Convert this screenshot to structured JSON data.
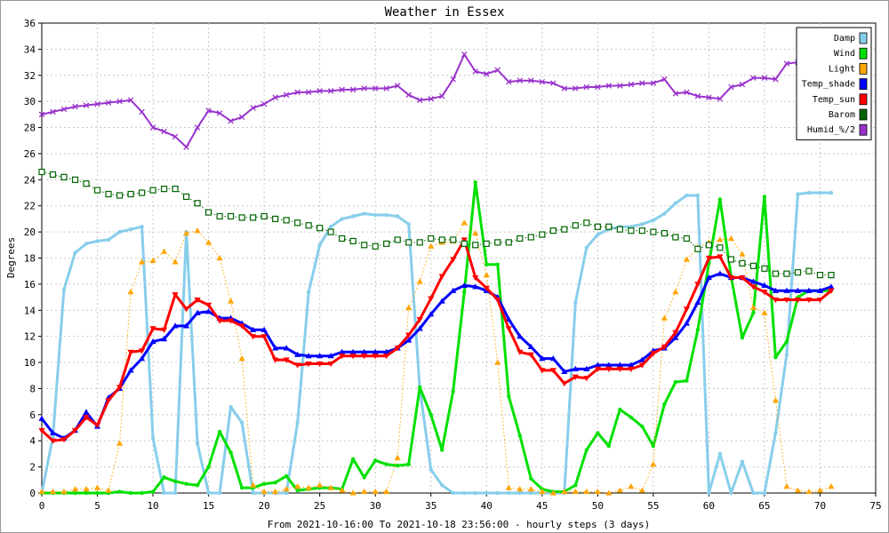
{
  "chart_data": {
    "type": "line",
    "title": "Weather in Essex",
    "xlabel": "From 2021-10-16:00 To 2021-10-18 23:56:00 - hourly steps (3 days)",
    "ylabel": "Degrees",
    "xlim": [
      0,
      75
    ],
    "ylim": [
      0,
      36
    ],
    "xticks": [
      0,
      5,
      10,
      15,
      20,
      25,
      30,
      35,
      40,
      45,
      50,
      55,
      60,
      65,
      70,
      75
    ],
    "yticks": [
      0,
      2,
      4,
      6,
      8,
      10,
      12,
      14,
      16,
      18,
      20,
      22,
      24,
      26,
      28,
      30,
      32,
      34,
      36
    ],
    "grid": true,
    "legend_position": "top-right",
    "x": [
      0,
      1,
      2,
      3,
      4,
      5,
      6,
      7,
      8,
      9,
      10,
      11,
      12,
      13,
      14,
      15,
      16,
      17,
      18,
      19,
      20,
      21,
      22,
      23,
      24,
      25,
      26,
      27,
      28,
      29,
      30,
      31,
      32,
      33,
      34,
      35,
      36,
      37,
      38,
      39,
      40,
      41,
      42,
      43,
      44,
      45,
      46,
      47,
      48,
      49,
      50,
      51,
      52,
      53,
      54,
      55,
      56,
      57,
      58,
      59,
      60,
      61,
      62,
      63,
      64,
      65,
      66,
      67,
      68,
      69,
      70,
      71
    ],
    "series": [
      {
        "name": "Damp",
        "color": "#87ceeb",
        "marker": "dot",
        "dash": false,
        "width": 3,
        "values": [
          0,
          4.3,
          15.6,
          18.4,
          19.1,
          19.3,
          19.4,
          20,
          20.2,
          20.4,
          4.2,
          0,
          0,
          20,
          3.8,
          0,
          0,
          6.6,
          5.4,
          0,
          0,
          0,
          0,
          5.4,
          15.4,
          19,
          20.4,
          21,
          21.2,
          21.4,
          21.3,
          21.3,
          21.2,
          20.6,
          8,
          1.8,
          0.6,
          0,
          0,
          0,
          0,
          0,
          0,
          0,
          0,
          0,
          0,
          0,
          14.6,
          18.8,
          19.8,
          20.2,
          20.4,
          20.4,
          20.6,
          20.9,
          21.4,
          22.2,
          22.8,
          22.8,
          0,
          3,
          0,
          2.4,
          0,
          0,
          4.6,
          10.6,
          22.9,
          23,
          23,
          23
        ]
      },
      {
        "name": "Wind",
        "color": "#00e000",
        "marker": "dot",
        "dash": false,
        "width": 3,
        "values": [
          0,
          0,
          0,
          0,
          0,
          0,
          0,
          0.1,
          0,
          0,
          0.1,
          1.2,
          0.9,
          0.7,
          0.6,
          2,
          4.7,
          3.1,
          0.4,
          0.4,
          0.7,
          0.8,
          1.3,
          0.2,
          0.3,
          0.4,
          0.4,
          0.3,
          2.6,
          1.2,
          2.5,
          2.2,
          2.1,
          2.2,
          8.1,
          6,
          3.3,
          7.8,
          15.4,
          23.8,
          17.5,
          17.5,
          7.4,
          4.4,
          1.1,
          0.3,
          0.1,
          0.1,
          0.6,
          3.3,
          4.6,
          3.6,
          6.4,
          5.8,
          5.1,
          3.6,
          6.8,
          8.5,
          8.6,
          12.5,
          17.6,
          22.5,
          16.6,
          11.9,
          13.8,
          22.7,
          10.4,
          11.6,
          15,
          15.5,
          15.5,
          15.5
        ]
      },
      {
        "name": "Light",
        "color": "#ffa500",
        "marker": "triangle-up",
        "dash": true,
        "width": 1,
        "values": [
          0.1,
          0.1,
          0.1,
          0.3,
          0.3,
          0.4,
          0.2,
          3.8,
          15.4,
          17.7,
          17.8,
          18.5,
          17.7,
          19.9,
          20.1,
          19.2,
          18,
          14.7,
          10.3,
          0.6,
          0.1,
          0.1,
          0.3,
          0.5,
          0.4,
          0.6,
          0.4,
          0.2,
          0,
          0.1,
          0.1,
          0.1,
          2.7,
          14.2,
          16.2,
          18.9,
          19.2,
          19.3,
          20.7,
          19.9,
          16.7,
          10,
          0.4,
          0.3,
          0.3,
          0.1,
          0,
          0.1,
          0.1,
          0.1,
          0.1,
          0,
          0.2,
          0.5,
          0.2,
          2.2,
          13.4,
          15.4,
          17.9,
          18.8,
          19.2,
          19.4,
          19.5,
          18.3,
          14.2,
          13.8,
          7.1,
          0.5,
          0.2,
          0.1,
          0.2,
          0.5
        ]
      },
      {
        "name": "Temp_shade",
        "color": "#0000ff",
        "marker": "triangle-up",
        "dash": false,
        "width": 3,
        "values": [
          5.7,
          4.6,
          4.2,
          4.8,
          6.2,
          5.1,
          7.3,
          8,
          9.4,
          10.3,
          11.6,
          11.8,
          12.8,
          12.8,
          13.8,
          13.9,
          13.4,
          13.4,
          13,
          12.5,
          12.5,
          11.1,
          11.1,
          10.6,
          10.5,
          10.5,
          10.5,
          10.8,
          10.8,
          10.8,
          10.8,
          10.8,
          11.1,
          11.7,
          12.6,
          13.7,
          14.7,
          15.5,
          15.9,
          15.8,
          15.5,
          15,
          13.3,
          12,
          11.2,
          10.3,
          10.3,
          9.3,
          9.5,
          9.5,
          9.8,
          9.8,
          9.8,
          9.8,
          10.2,
          10.9,
          11.1,
          11.9,
          13,
          14.6,
          16.5,
          16.8,
          16.5,
          16.5,
          16.2,
          15.9,
          15.5,
          15.5,
          15.5,
          15.5,
          15.5,
          15.8
        ]
      },
      {
        "name": "Temp_sun",
        "color": "#ff0000",
        "marker": "triangle-down",
        "dash": false,
        "width": 3,
        "values": [
          4.8,
          4,
          4.1,
          4.8,
          5.8,
          5.2,
          7.1,
          8.1,
          10.8,
          10.9,
          12.6,
          12.5,
          15.2,
          14.1,
          14.8,
          14.4,
          13.2,
          13.2,
          12.8,
          12,
          12,
          10.2,
          10.2,
          9.8,
          9.9,
          9.9,
          9.9,
          10.5,
          10.5,
          10.5,
          10.5,
          10.5,
          11.1,
          12.1,
          13.3,
          14.9,
          16.6,
          17.9,
          19.4,
          16.5,
          15.7,
          14.8,
          12.6,
          10.8,
          10.6,
          9.4,
          9.4,
          8.4,
          8.9,
          8.8,
          9.5,
          9.5,
          9.5,
          9.5,
          9.8,
          10.7,
          11.2,
          12.3,
          14.1,
          16,
          18,
          18.1,
          16.5,
          16.5,
          15.8,
          15.4,
          14.8,
          14.8,
          14.8,
          14.8,
          14.8,
          15.5
        ]
      },
      {
        "name": "Barom",
        "color": "#006400",
        "marker": "square",
        "dash": true,
        "width": 1,
        "values": [
          24.6,
          24.4,
          24.2,
          24,
          23.7,
          23.2,
          22.9,
          22.8,
          22.9,
          23,
          23.2,
          23.3,
          23.3,
          22.7,
          22.2,
          21.5,
          21.2,
          21.2,
          21.1,
          21.1,
          21.2,
          21,
          20.9,
          20.7,
          20.5,
          20.3,
          20,
          19.5,
          19.3,
          19,
          18.9,
          19.1,
          19.4,
          19.2,
          19.2,
          19.5,
          19.4,
          19.4,
          19.1,
          19,
          19.1,
          19.2,
          19.2,
          19.5,
          19.6,
          19.8,
          20.1,
          20.2,
          20.5,
          20.7,
          20.4,
          20.4,
          20.2,
          20.1,
          20.1,
          20,
          19.9,
          19.6,
          19.5,
          18.7,
          19,
          18.8,
          17.9,
          17.6,
          17.4,
          17.2,
          16.8,
          16.8,
          16.9,
          17,
          16.7,
          16.7
        ]
      },
      {
        "name": "Humid_%/2",
        "color": "#9932cc",
        "marker": "x",
        "dash": false,
        "width": 2,
        "values": [
          29,
          29.2,
          29.4,
          29.6,
          29.7,
          29.8,
          29.9,
          30,
          30.1,
          29.2,
          28,
          27.7,
          27.3,
          26.5,
          28,
          29.3,
          29.1,
          28.5,
          28.8,
          29.5,
          29.8,
          30.3,
          30.5,
          30.7,
          30.7,
          30.8,
          30.8,
          30.9,
          30.9,
          31,
          31,
          31,
          31.2,
          30.5,
          30.1,
          30.2,
          30.4,
          31.7,
          33.6,
          32.3,
          32.1,
          32.4,
          31.5,
          31.6,
          31.6,
          31.5,
          31.4,
          31,
          31,
          31.1,
          31.1,
          31.2,
          31.2,
          31.3,
          31.4,
          31.4,
          31.7,
          30.6,
          30.7,
          30.4,
          30.3,
          30.2,
          31.1,
          31.3,
          31.8,
          31.8,
          31.7,
          32.9,
          33,
          33.2,
          33.2,
          33.2
        ]
      }
    ]
  }
}
